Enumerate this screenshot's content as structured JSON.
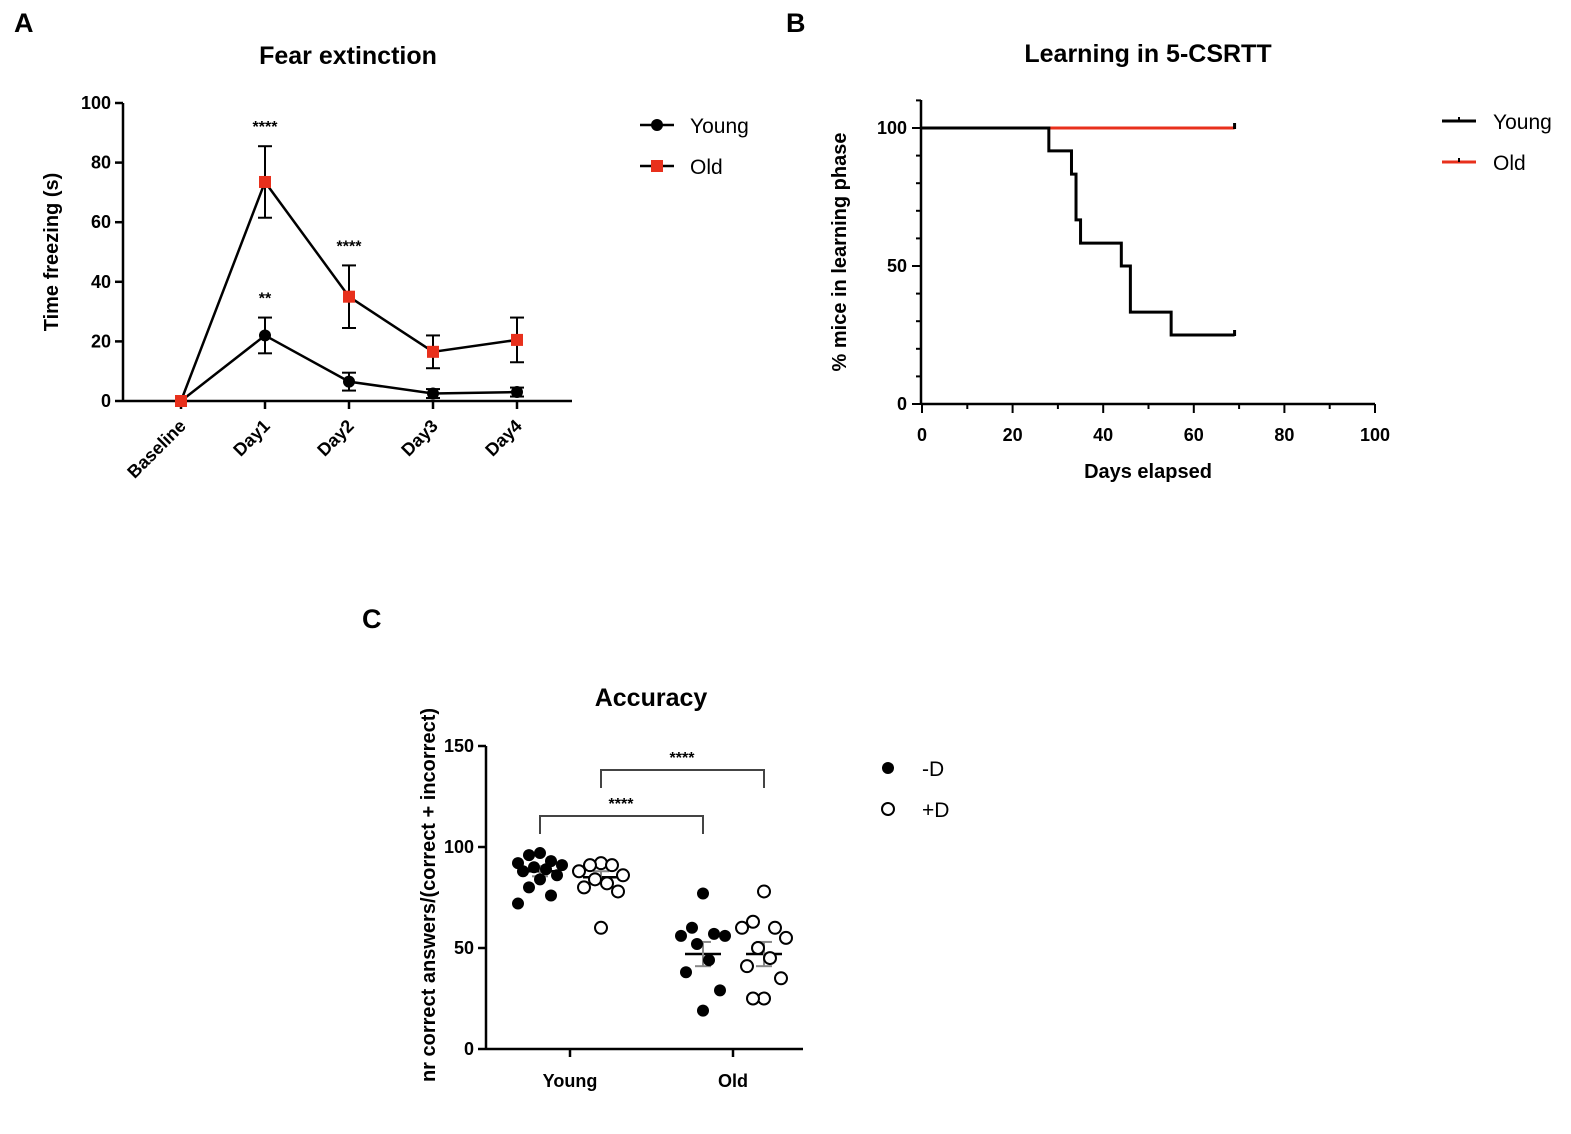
{
  "chart_data": [
    {
      "panel": "A",
      "type": "line",
      "title": "Fear extinction",
      "xlabel": "",
      "ylabel": "Time freezing (s)",
      "categories": [
        "Baseline",
        "Day1",
        "Day2",
        "Day3",
        "Day4"
      ],
      "ylim": [
        0,
        100
      ],
      "yticks": [
        0,
        20,
        40,
        60,
        80,
        100
      ],
      "series": [
        {
          "name": "Young",
          "color": "#000000",
          "marker": "circle",
          "values": [
            0,
            22,
            6.5,
            2.5,
            3
          ],
          "errors": [
            0,
            6,
            3,
            1.5,
            1.5
          ]
        },
        {
          "name": "Old",
          "color": "#e8301c",
          "marker": "square",
          "values": [
            0,
            73.5,
            35,
            16.5,
            20.5
          ],
          "errors": [
            0,
            12,
            10.5,
            5.5,
            7.5
          ]
        }
      ],
      "annotations": [
        {
          "category": "Day1",
          "series": "Old",
          "text": "****"
        },
        {
          "category": "Day1",
          "series": "Young",
          "text": "**"
        },
        {
          "category": "Day2",
          "series": "Old",
          "text": "****"
        }
      ]
    },
    {
      "panel": "B",
      "type": "line",
      "title": "Learning in 5-CSRTT",
      "xlabel": "Days elapsed",
      "ylabel": "% mice in learning phase",
      "xlim": [
        0,
        100
      ],
      "xticks": [
        0,
        20,
        40,
        60,
        80,
        100
      ],
      "ylim": [
        0,
        110
      ],
      "yticks": [
        0,
        50,
        100
      ],
      "series": [
        {
          "name": "Young",
          "color": "#000000",
          "step": true,
          "x": [
            0,
            28,
            31,
            33,
            34,
            35,
            44,
            46,
            55,
            69
          ],
          "y": [
            100,
            91.7,
            91.7,
            83.3,
            66.7,
            58.3,
            50,
            33.3,
            25,
            25
          ]
        },
        {
          "name": "Old",
          "color": "#e8301c",
          "step": true,
          "x": [
            0,
            69
          ],
          "y": [
            100,
            100
          ]
        }
      ]
    },
    {
      "panel": "C",
      "type": "scatter",
      "title": "Accuracy",
      "xlabel": "",
      "ylabel": "nr correct answers/(correct + incorrect)",
      "categories": [
        "Young",
        "Old"
      ],
      "ylim": [
        0,
        150
      ],
      "yticks": [
        0,
        50,
        100,
        150
      ],
      "series": [
        {
          "name": "-D",
          "filled": true,
          "groups": [
            {
              "category": "Young",
              "mean": 88,
              "sem": 2.5,
              "values": [
                97,
                96,
                93,
                92,
                91,
                90,
                89,
                88,
                86,
                84,
                80,
                76,
                72
              ]
            },
            {
              "category": "Old",
              "mean": 47,
              "sem": 6,
              "values": [
                77,
                60,
                57,
                56,
                56,
                52,
                44,
                38,
                29,
                19
              ]
            }
          ]
        },
        {
          "name": "+D",
          "filled": false,
          "groups": [
            {
              "category": "Young",
              "mean": 85,
              "sem": 3,
              "values": [
                92,
                91,
                91,
                88,
                86,
                84,
                82,
                80,
                78,
                60
              ]
            },
            {
              "category": "Old",
              "mean": 47,
              "sem": 6,
              "values": [
                78,
                63,
                60,
                60,
                55,
                50,
                45,
                41,
                35,
                25,
                25
              ]
            }
          ]
        }
      ],
      "brackets": [
        {
          "from": "Young -D",
          "to": "Old -D",
          "text": "****"
        },
        {
          "from": "Young +D",
          "to": "Old +D",
          "text": "****"
        }
      ]
    }
  ],
  "panel_letters": {
    "a": "A",
    "b": "B",
    "c": "C"
  }
}
